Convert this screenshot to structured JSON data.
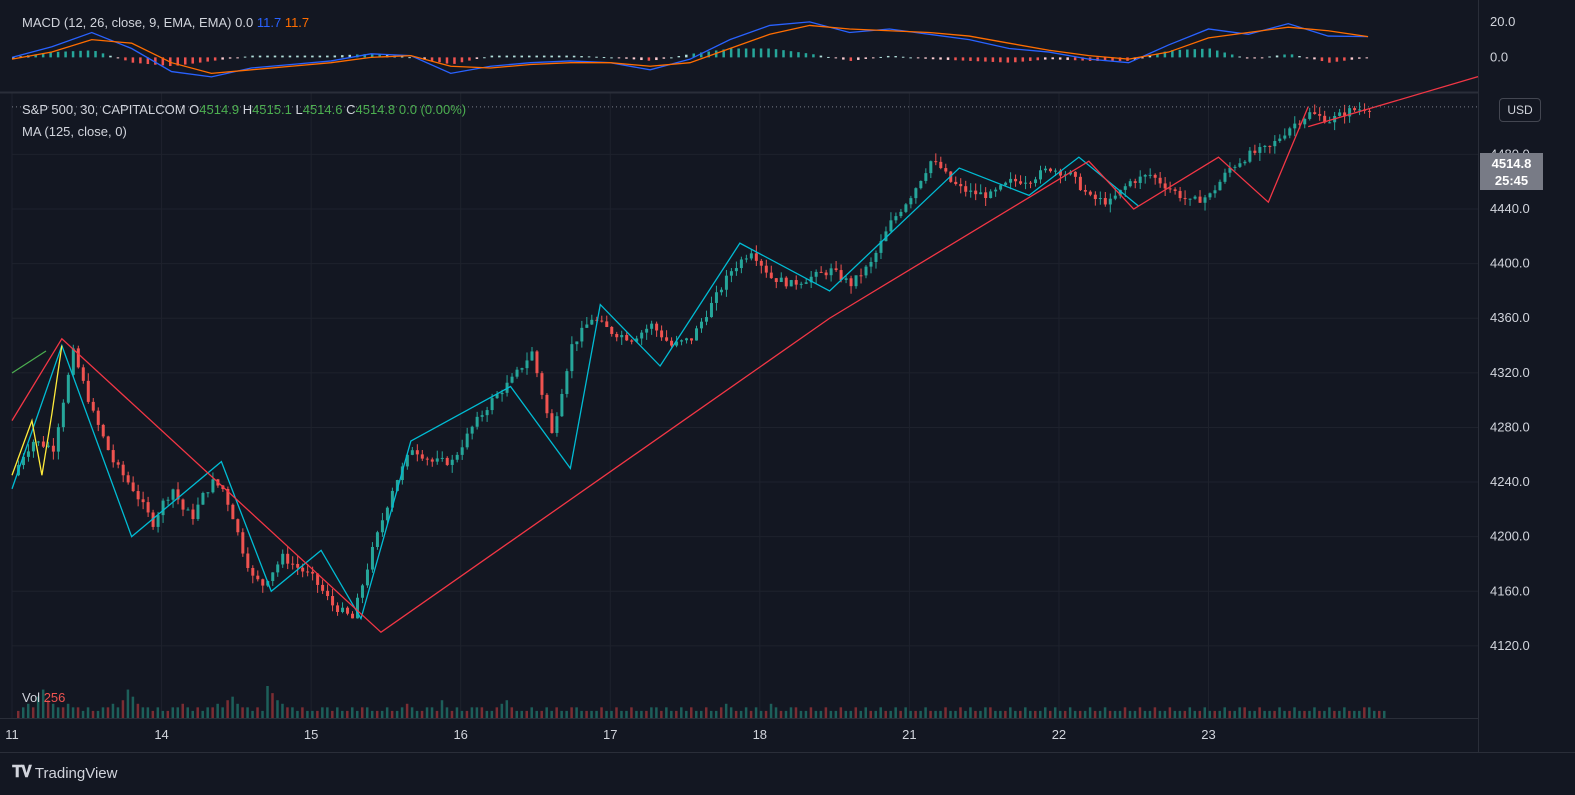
{
  "macd_legend": {
    "name": "MACD (12, 26, close, 9, EMA, EMA)",
    "hist": "0.0",
    "macd": "11.7",
    "signal": "11.7"
  },
  "price_legend": {
    "symbol": "S&P 500, 30, CAPITALCOM",
    "o_label": "O",
    "o_value": "4514.9",
    "h_label": "H",
    "h_value": "4515.1",
    "l_label": "L",
    "l_value": "4514.6",
    "c_label": "C",
    "c_value": "4514.8",
    "change": "0.0 (0.00%)"
  },
  "ma_legend": "MA (125, close, 0)",
  "vol_legend": {
    "label": "Vol",
    "value": "256"
  },
  "currency_button": "USD",
  "price_badge": {
    "price": "4514.8",
    "countdown": "25:45"
  },
  "brand": "TradingView",
  "colors": {
    "background": "#131722",
    "up": "#26a69a",
    "down": "#ef5350",
    "macd_line": "#2962ff",
    "signal_line": "#ff6d00",
    "zigzag_red": "#f23645",
    "zigzag_cyan": "#00bcd4",
    "wave_yellow": "#ffeb3b"
  },
  "chart_data": [
    {
      "type": "line",
      "name": "MACD",
      "y_ticks": [
        "20.0",
        "0.0"
      ],
      "ylim": [
        -15,
        25
      ],
      "series": [
        {
          "name": "MACD",
          "x": [
            0,
            8,
            16,
            24,
            32,
            40,
            48,
            56,
            64,
            72,
            80,
            88,
            96,
            104,
            112,
            120,
            128,
            136,
            144,
            152,
            160,
            168,
            176,
            184,
            192,
            200,
            208,
            216,
            224,
            232,
            240,
            248,
            256,
            264,
            272
          ],
          "values": [
            0,
            6,
            14,
            5,
            -8,
            -11,
            -6,
            -4,
            -2,
            2,
            1,
            -9,
            -5,
            -3,
            -2,
            -3,
            -7,
            -1,
            10,
            18,
            20,
            14,
            16,
            13,
            10,
            5,
            3,
            -1,
            -3,
            7,
            16,
            13,
            19,
            12,
            11.7
          ]
        },
        {
          "name": "Signal",
          "x": [
            0,
            8,
            16,
            24,
            32,
            40,
            48,
            56,
            64,
            72,
            80,
            88,
            96,
            104,
            112,
            120,
            128,
            136,
            144,
            152,
            160,
            168,
            176,
            184,
            192,
            200,
            208,
            216,
            224,
            232,
            240,
            248,
            256,
            264,
            272
          ],
          "values": [
            -1,
            3,
            10,
            8,
            -3,
            -9,
            -7,
            -5,
            -3,
            0,
            1,
            -5,
            -6,
            -4,
            -3,
            -3,
            -5,
            -3,
            5,
            13,
            18,
            16,
            15,
            14,
            12,
            8,
            4,
            1,
            -1,
            3,
            11,
            14,
            17,
            15,
            11.7
          ]
        }
      ],
      "histogram": [
        0,
        3,
        4,
        -3,
        -5,
        -2,
        1,
        1,
        1,
        2,
        0,
        -4,
        1,
        1,
        1,
        0,
        -2,
        2,
        5,
        5,
        2,
        -2,
        1,
        -1,
        -2,
        -3,
        -1,
        -2,
        -2,
        4,
        5,
        -1,
        2,
        -3,
        0
      ]
    },
    {
      "type": "candlestick",
      "name": "S&P 500, 30, CAPITALCOM",
      "x_ticks": [
        "11",
        "14",
        "15",
        "16",
        "17",
        "18",
        "21",
        "22",
        "23"
      ],
      "y_ticks": [
        "4120.0",
        "4160.0",
        "4200.0",
        "4240.0",
        "4280.0",
        "4320.0",
        "4360.0",
        "4400.0",
        "4440.0",
        "4480.0"
      ],
      "ylim": [
        4095,
        4525
      ],
      "last_price": 4514.8,
      "close_path": {
        "x": [
          0,
          2,
          4,
          8,
          12,
          16,
          20,
          24,
          28,
          30,
          32,
          34,
          36,
          38,
          40,
          42,
          44,
          46,
          48,
          50,
          52,
          54,
          56,
          60,
          64,
          68,
          72,
          76,
          80,
          84,
          88,
          92,
          96,
          100,
          104,
          108,
          112,
          116,
          120,
          124,
          128,
          132,
          136,
          140,
          144,
          148,
          152,
          156,
          160,
          164,
          168,
          172,
          176,
          180,
          184,
          186,
          188,
          190,
          192,
          196,
          200,
          204,
          208,
          212,
          216,
          220,
          224,
          228,
          232,
          236,
          240,
          244,
          248,
          252,
          256,
          260,
          264,
          268,
          272
        ],
        "values": [
          4245,
          4260,
          4270,
          4265,
          4335,
          4290,
          4255,
          4235,
          4210,
          4225,
          4235,
          4220,
          4215,
          4230,
          4240,
          4235,
          4215,
          4190,
          4170,
          4165,
          4175,
          4185,
          4180,
          4170,
          4150,
          4140,
          4190,
          4235,
          4265,
          4255,
          4255,
          4280,
          4300,
          4315,
          4335,
          4275,
          4340,
          4360,
          4350,
          4345,
          4355,
          4340,
          4345,
          4370,
          4395,
          4410,
          4390,
          4385,
          4390,
          4395,
          4385,
          4400,
          4430,
          4450,
          4475,
          4470,
          4460,
          4455,
          4452,
          4450,
          4460,
          4462,
          4470,
          4465,
          4448,
          4445,
          4460,
          4465,
          4455,
          4445,
          4450,
          4470,
          4480,
          4485,
          4500,
          4510,
          4505,
          4512,
          4514.8
        ]
      },
      "zigzag_red": {
        "x": [
          0,
          10,
          74,
          164,
          216,
          225,
          242,
          252,
          260
        ],
        "values": [
          4285,
          4345,
          4130,
          4360,
          4475,
          4440,
          4478,
          4445,
          4515
        ]
      },
      "zigzag_cyan": {
        "x": [
          0,
          10,
          24,
          42,
          52,
          62,
          70,
          80,
          100,
          112,
          118,
          130,
          146,
          164,
          190,
          204,
          214,
          226
        ],
        "values": [
          4235,
          4340,
          4200,
          4255,
          4160,
          4190,
          4140,
          4270,
          4310,
          4250,
          4370,
          4325,
          4415,
          4380,
          4470,
          4450,
          4478,
          4442
        ]
      },
      "wave_yellow": {
        "x": [
          0,
          4,
          6,
          8,
          10
        ],
        "values": [
          4245,
          4285,
          4245,
          4290,
          4340
        ]
      }
    },
    {
      "type": "bar",
      "name": "Vol",
      "note_values": "relative volume per bar",
      "values": [
        2,
        3,
        4,
        3,
        6,
        8,
        5,
        4,
        3,
        3,
        4,
        3,
        3,
        2,
        3,
        2,
        2,
        3,
        3,
        4,
        3,
        5,
        8,
        6,
        4,
        3,
        3,
        2,
        3,
        2,
        2,
        3,
        3,
        4,
        3,
        2,
        3,
        2,
        3,
        3,
        4,
        3,
        5,
        6,
        4,
        3,
        3,
        2,
        3,
        2,
        9,
        7,
        5,
        4,
        3,
        3,
        2,
        3,
        2,
        2,
        2,
        3,
        3,
        2,
        3,
        2,
        2,
        3,
        2,
        3,
        3,
        2,
        2,
        2,
        3,
        2,
        2,
        3,
        4,
        3,
        2,
        2,
        3,
        3,
        2,
        5,
        3,
        2,
        3,
        2,
        2,
        3,
        3,
        3,
        2,
        2,
        3,
        4,
        5,
        3,
        2,
        2,
        2,
        3,
        2,
        2,
        3,
        2,
        3,
        2,
        2,
        3,
        3,
        2,
        2,
        2,
        2,
        3,
        2,
        2,
        3,
        2,
        2,
        3,
        2,
        2,
        2,
        3,
        3,
        2,
        3,
        2,
        2,
        3,
        2,
        3,
        2,
        2,
        3,
        2,
        2,
        3,
        4,
        3,
        2,
        2,
        3,
        2,
        3,
        2,
        2,
        4,
        3,
        2,
        2,
        3,
        3,
        2,
        2,
        3,
        2,
        2,
        3,
        2,
        2,
        3,
        2,
        2,
        3,
        2,
        3,
        2,
        2,
        3,
        2,
        2,
        3,
        2,
        3,
        2,
        2,
        2,
        3,
        2,
        2,
        2,
        3,
        2,
        2,
        3,
        2,
        3,
        2,
        2,
        3,
        3,
        2,
        2,
        2,
        3,
        2,
        2,
        3,
        2,
        2,
        2,
        3,
        2,
        3,
        2,
        2,
        3,
        2,
        2,
        2,
        3,
        2,
        2,
        3,
        2,
        2,
        2,
        3,
        2,
        2,
        3,
        2,
        2,
        3,
        2,
        2,
        3,
        2,
        2,
        2,
        3,
        2,
        2,
        3,
        2,
        2,
        2,
        3,
        2,
        2,
        3,
        3,
        2,
        2,
        3,
        2,
        2,
        2,
        3,
        2,
        2,
        3,
        2,
        2,
        2,
        3,
        2,
        2,
        3,
        2,
        2,
        3,
        2,
        2,
        2,
        3,
        3,
        2,
        2,
        2
      ]
    }
  ]
}
